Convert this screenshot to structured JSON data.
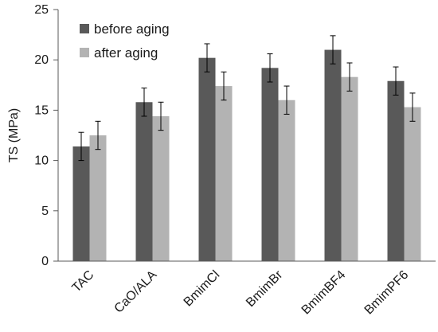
{
  "chart_data": {
    "type": "bar",
    "title": "",
    "xlabel": "",
    "ylabel": "TS (MPa)",
    "ylim": [
      0,
      25
    ],
    "yticks": [
      0,
      5,
      10,
      15,
      20,
      25
    ],
    "grid": false,
    "legend_position": "top-left",
    "categories": [
      "TAC",
      "CaO/ALA",
      "BmimCl",
      "BmimBr",
      "BmimBF4",
      "BmimPF6"
    ],
    "series": [
      {
        "name": "before aging",
        "color": "#595959",
        "values": [
          11.4,
          15.8,
          20.2,
          19.2,
          21.0,
          17.9
        ],
        "error": [
          1.4,
          1.4,
          1.4,
          1.4,
          1.4,
          1.4
        ]
      },
      {
        "name": "after aging",
        "color": "#b3b3b3",
        "values": [
          12.5,
          14.4,
          17.4,
          16.0,
          18.3,
          15.3
        ],
        "error": [
          1.4,
          1.4,
          1.4,
          1.4,
          1.4,
          1.4
        ]
      }
    ]
  }
}
